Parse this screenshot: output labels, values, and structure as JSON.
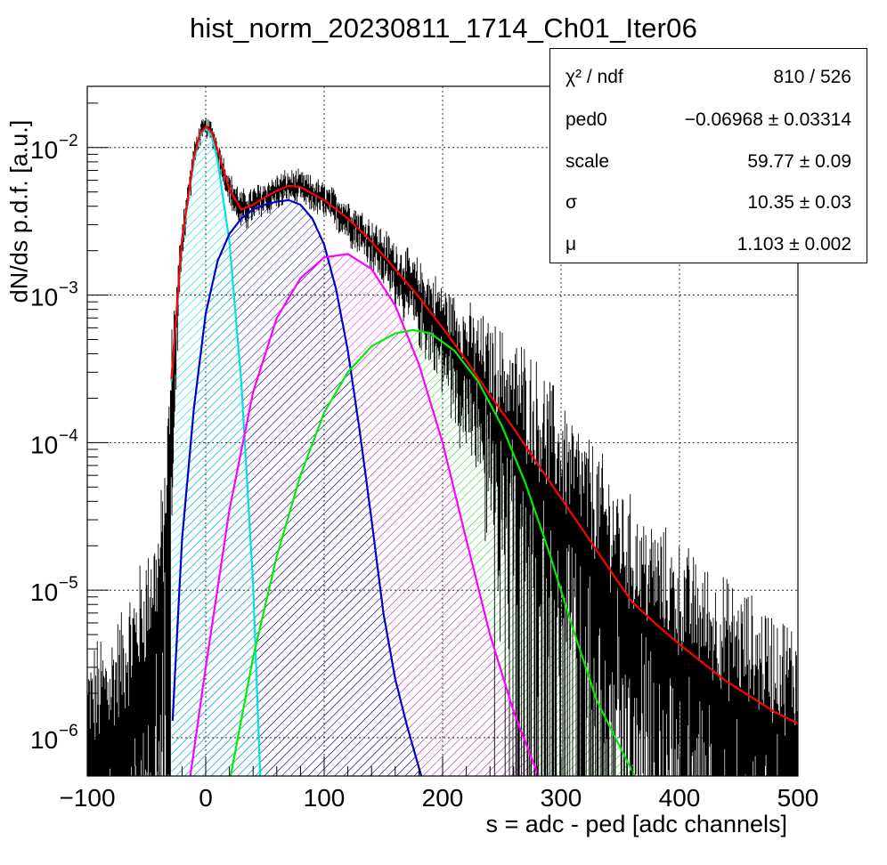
{
  "title": "hist_norm_20230811_1714_Ch01_Iter06",
  "stats": {
    "rows": [
      {
        "key": "χ² / ndf",
        "value": "810 / 526"
      },
      {
        "key": "ped0",
        "value": "−0.06968 ± 0.03314"
      },
      {
        "key": "scale",
        "value": "59.77 ± 0.09"
      },
      {
        "key": "σ",
        "value": "10.35 ± 0.03"
      },
      {
        "key": "μ",
        "value": "1.103 ± 0.002"
      }
    ]
  },
  "chart_data": {
    "type": "line",
    "title": "hist_norm_20230811_1714_Ch01_Iter06",
    "xlabel": "s = adc - ped [adc channels]",
    "ylabel": "dN/ds p.d.f. [a.u.]",
    "xlim": [
      -100,
      500
    ],
    "ylim": [
      5.5e-07,
      0.026
    ],
    "yscale": "log",
    "grid": true,
    "x_ticks": [
      "−100",
      "0",
      "100",
      "200",
      "300",
      "400",
      "500"
    ],
    "y_ticks": [
      {
        "base": "10",
        "exp": "−6",
        "value": 1e-06
      },
      {
        "base": "10",
        "exp": "−5",
        "value": 1e-05
      },
      {
        "base": "10",
        "exp": "−4",
        "value": 0.0001
      },
      {
        "base": "10",
        "exp": "−3",
        "value": 0.001
      },
      {
        "base": "10",
        "exp": "−2",
        "value": 0.01
      }
    ],
    "colors": {
      "data": "#000000",
      "total_fit": "#ff0000",
      "pedestal": "#00e0e8",
      "pe1": "#0000cc",
      "pe2": "#ff00ff",
      "pe3": "#00ee00"
    },
    "series": [
      {
        "role": "pedestal",
        "x": [
          -29,
          -20,
          -10,
          -5,
          0,
          5,
          10,
          20,
          30,
          40,
          46
        ],
        "y": [
          0.00026,
          0.0023,
          0.0082,
          0.0121,
          0.0135,
          0.0121,
          0.0082,
          0.0023,
          0.00026,
          1.1e-05,
          5.5e-07
        ]
      },
      {
        "role": "1 p.e.",
        "x": [
          -28,
          -20,
          -10,
          0,
          10,
          20,
          30,
          40,
          50,
          60,
          70,
          80,
          90,
          100,
          110,
          120,
          130,
          140,
          150,
          160,
          170,
          182
        ],
        "y": [
          1.3e-06,
          2.2e-05,
          0.00017,
          0.00075,
          0.0017,
          0.0026,
          0.0033,
          0.0038,
          0.0041,
          0.0043,
          0.0044,
          0.0041,
          0.0033,
          0.0022,
          0.0011,
          0.00042,
          0.00012,
          3e-05,
          7e-06,
          2.5e-06,
          1.2e-06,
          5.5e-07
        ]
      },
      {
        "role": "2 p.e.",
        "x": [
          -13,
          0,
          20,
          40,
          60,
          80,
          100,
          120,
          140,
          160,
          180,
          200,
          220,
          240,
          260,
          281
        ],
        "y": [
          5.5e-07,
          3e-06,
          3.5e-05,
          0.00022,
          0.0007,
          0.0013,
          0.0018,
          0.0019,
          0.0015,
          0.00085,
          0.00034,
          0.0001,
          2.2e-05,
          5e-06,
          1.5e-06,
          5.5e-07
        ]
      },
      {
        "role": "3 p.e.",
        "x": [
          21,
          40,
          60,
          80,
          100,
          120,
          140,
          160,
          175,
          190,
          210,
          230,
          250,
          270,
          290,
          310,
          330,
          362
        ],
        "y": [
          5.5e-07,
          3.5e-06,
          1.7e-05,
          6e-05,
          0.00016,
          0.0003,
          0.00045,
          0.00055,
          0.00058,
          0.00055,
          0.00042,
          0.00026,
          0.00013,
          5.3e-05,
          1.8e-05,
          5.5e-06,
          1.8e-06,
          5.5e-07
        ]
      },
      {
        "role": "total fit",
        "x": [
          -29,
          -20,
          -10,
          -5,
          0,
          5,
          10,
          20,
          30,
          40,
          50,
          60,
          70,
          80,
          100,
          120,
          140,
          160,
          180,
          200,
          220,
          240,
          260,
          280,
          300,
          320,
          340,
          360,
          380,
          400,
          420,
          440,
          460,
          480,
          500
        ],
        "y": [
          0.00027,
          0.0024,
          0.0086,
          0.0124,
          0.0138,
          0.0128,
          0.0096,
          0.0052,
          0.0038,
          0.0041,
          0.0046,
          0.0051,
          0.0055,
          0.0054,
          0.0044,
          0.0033,
          0.0023,
          0.0015,
          0.00097,
          0.0006,
          0.00036,
          0.00021,
          0.000125,
          7.2e-05,
          4.2e-05,
          2.45e-05,
          1.42e-05,
          8.3e-06,
          5.9e-06,
          4.3e-06,
          3.2e-06,
          2.4e-06,
          1.9e-06,
          1.5e-06,
          1.25e-06
        ]
      }
    ],
    "data_envelope": {
      "x": [
        -100,
        -90,
        -80,
        -70,
        -60,
        -50,
        -40,
        -35,
        -30,
        -28,
        -20,
        -10,
        -5,
        0,
        5,
        10,
        20,
        30,
        40,
        50,
        60,
        70,
        80,
        100,
        120,
        140,
        160,
        180,
        200,
        220,
        240,
        260,
        280,
        300,
        320,
        340,
        360,
        380,
        400,
        420,
        440,
        460,
        480,
        500
      ],
      "y": [
        8e-07,
        1e-06,
        1.2e-06,
        1.6e-06,
        2.5e-06,
        4e-06,
        7e-06,
        1.4e-05,
        8e-05,
        0.00027,
        0.0024,
        0.0086,
        0.0124,
        0.0138,
        0.0128,
        0.0096,
        0.0052,
        0.0038,
        0.0041,
        0.0046,
        0.0051,
        0.0055,
        0.0054,
        0.0044,
        0.0033,
        0.0023,
        0.0015,
        0.00097,
        0.0006,
        0.00036,
        0.00021,
        0.000125,
        7.2e-05,
        4.2e-05,
        2.45e-05,
        1.42e-05,
        8.3e-06,
        5.9e-06,
        4.3e-06,
        3.2e-06,
        2.4e-06,
        1.9e-06,
        1.5e-06,
        1.25e-06
      ]
    }
  }
}
